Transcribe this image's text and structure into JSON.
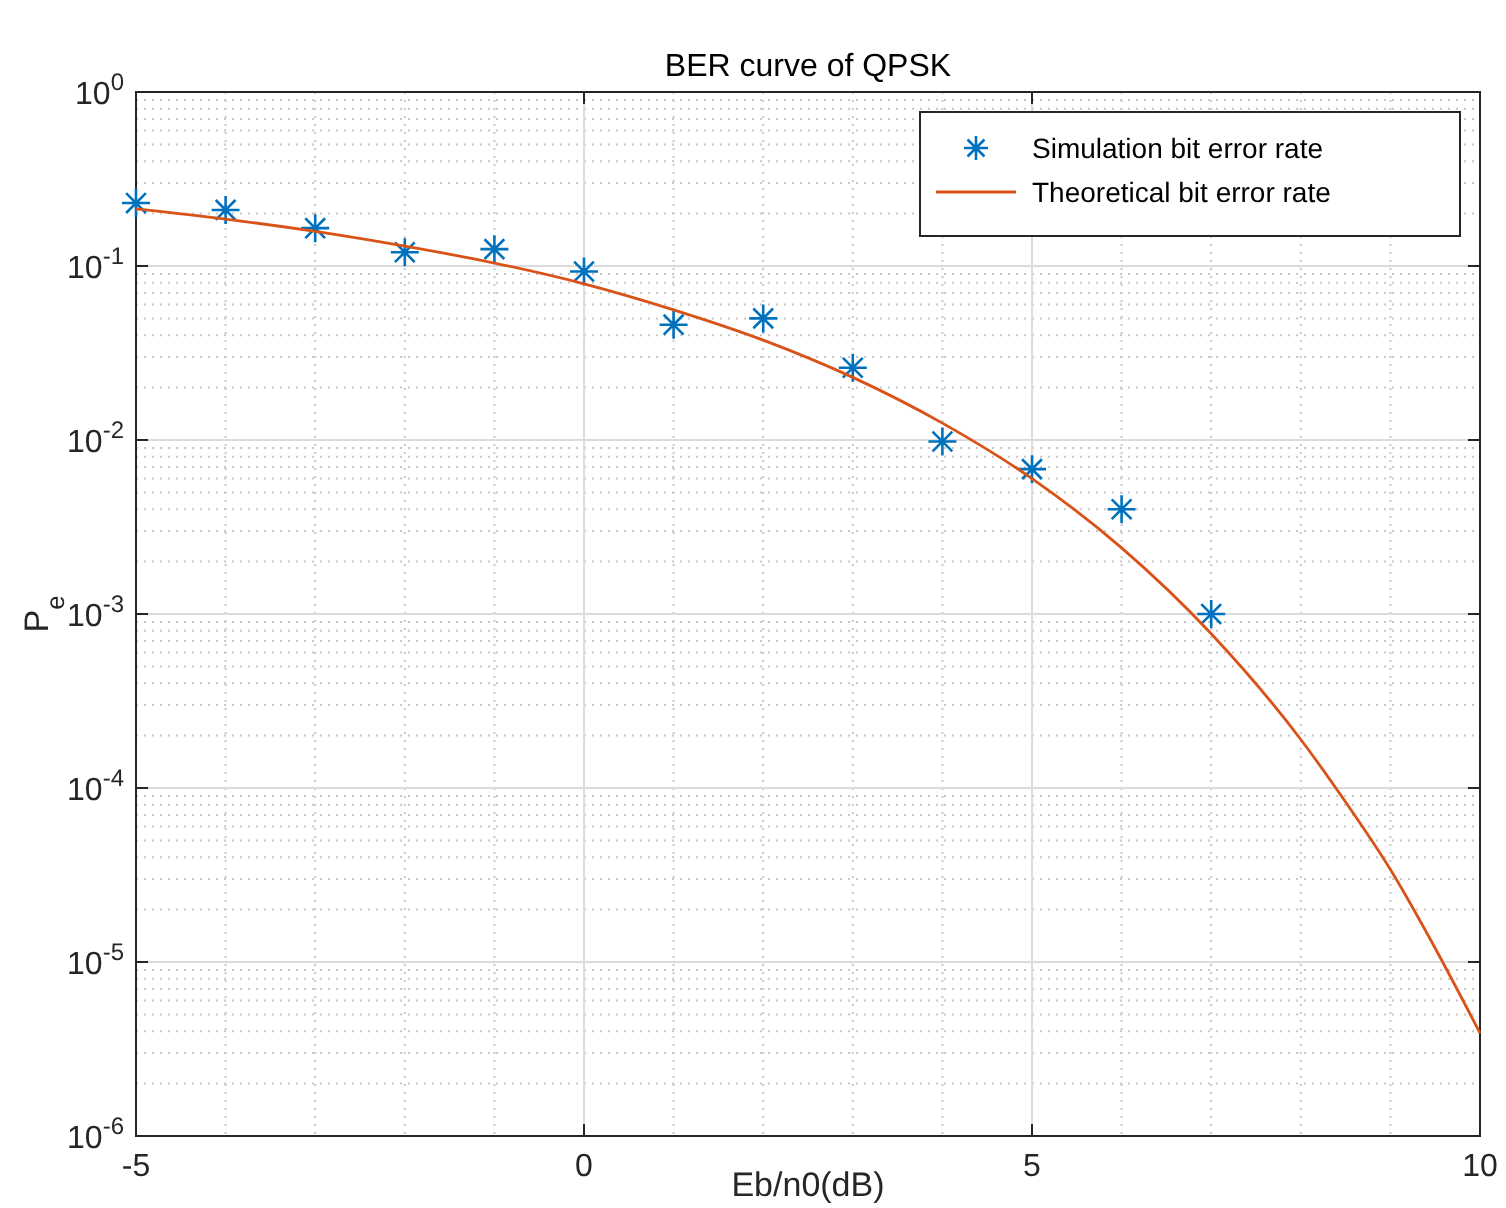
{
  "chart_data": {
    "type": "line",
    "title": "BER curve of QPSK",
    "xlabel": "Eb/n0(dB)",
    "ylabel": "P$_{e}$",
    "log": "y",
    "grid": true,
    "legend": "top right",
    "xlim": [
      -5,
      10
    ],
    "xticks": [
      -5,
      0,
      5,
      10
    ],
    "ylim": [
      1e-06,
      1
    ],
    "yticks": [
      {
        "value": 1e-06,
        "label": "10$^{-6}$"
      },
      {
        "value": 1e-05,
        "label": "10$^{-5}$"
      },
      {
        "value": 0.0001,
        "label": "10$^{-4}$"
      },
      {
        "value": 0.001,
        "label": "10$^{-3}$"
      },
      {
        "value": 0.01,
        "label": "10$^{-2}$"
      },
      {
        "value": 0.1,
        "label": "10$^{-1}$"
      },
      {
        "value": 1,
        "label": "10$^{0}$"
      }
    ],
    "series": [
      {
        "name": "Simulation bit error rate",
        "type": "scatter",
        "marker": "cross",
        "color": "#0072bd",
        "x": [
          -5,
          -4,
          -3,
          -2,
          -1,
          0,
          1,
          2,
          3,
          4,
          5,
          6,
          7
        ],
        "values": [
          0.23,
          0.21,
          0.165,
          0.12,
          0.125,
          0.093,
          0.046,
          0.05,
          0.026,
          0.0098,
          0.0068,
          0.004,
          0.001
        ]
      },
      {
        "name": "Theoretical bit error rate",
        "color": "#d95319",
        "x": [
          -5,
          -4,
          -3,
          -2,
          -1,
          0,
          1,
          2,
          3,
          4,
          5,
          6,
          7,
          8,
          8.5,
          9,
          9.5,
          10
        ],
        "values": [
          0.213,
          0.186,
          0.158,
          0.13,
          0.104,
          0.079,
          0.056,
          0.0375,
          0.0229,
          0.0125,
          0.006,
          0.0024,
          0.00077,
          0.00019,
          8.3e-05,
          3.4e-05,
          1.2e-05,
          3.9e-06
        ]
      }
    ]
  }
}
